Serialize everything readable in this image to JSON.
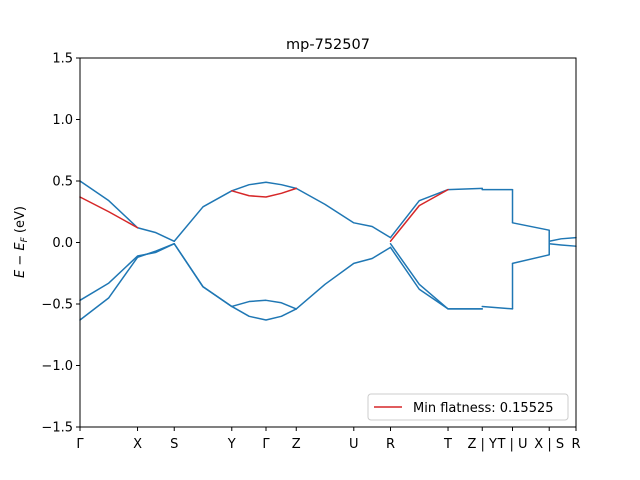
{
  "chart_data": {
    "type": "line",
    "title": "mp-752507",
    "xlabel": "",
    "ylabel": "E − E_F (eV)",
    "ylabel_main": "E − E",
    "ylabel_sub": "F",
    "ylabel_units": " (eV)",
    "ylim": [
      -1.5,
      1.5
    ],
    "yticks": [
      -1.5,
      -1.0,
      -0.5,
      0.0,
      0.5,
      1.0,
      1.5
    ],
    "ytick_labels": [
      "−1.5",
      "−1.0",
      "−0.5",
      "0.0",
      "0.5",
      "1.0",
      "1.5"
    ],
    "xlim": [
      0,
      100
    ],
    "kpoints": [
      {
        "label": "Γ",
        "x": 0
      },
      {
        "label": "X",
        "x": 11.6
      },
      {
        "label": "S",
        "x": 19.0
      },
      {
        "label": "Y",
        "x": 30.6
      },
      {
        "label": "Γ",
        "x": 37.5
      },
      {
        "label": "Z",
        "x": 43.6
      },
      {
        "label": "U",
        "x": 55.2
      },
      {
        "label": "R",
        "x": 62.6
      },
      {
        "label": "T",
        "x": 74.2
      },
      {
        "label": "Z | Y",
        "x": 81.1
      },
      {
        "label": "T | U",
        "x": 87.2
      },
      {
        "label": "X | S",
        "x": 94.6
      },
      {
        "label": "R",
        "x": 100
      }
    ],
    "grid": false,
    "legend": {
      "position": "bottom-right",
      "entries": [
        {
          "label": "Min flatness: 0.15525",
          "color": "#d62728"
        }
      ]
    },
    "colors": {
      "band": "#1f77b4",
      "flat": "#d62728"
    },
    "series": [
      {
        "color": "#1f77b4",
        "points": [
          [
            0,
            0.5
          ],
          [
            5.8,
            0.34
          ],
          [
            11.6,
            0.12
          ],
          [
            15.3,
            0.08
          ],
          [
            19.0,
            0.01
          ]
        ]
      },
      {
        "color": "#1f77b4",
        "points": [
          [
            0,
            -0.47
          ],
          [
            5.8,
            -0.33
          ],
          [
            11.6,
            -0.11
          ],
          [
            15.3,
            -0.08
          ],
          [
            19.0,
            -0.01
          ]
        ]
      },
      {
        "color": "#1f77b4",
        "points": [
          [
            0,
            -0.63
          ],
          [
            5.8,
            -0.45
          ],
          [
            11.6,
            -0.12
          ],
          [
            15.3,
            -0.07
          ],
          [
            19.0,
            -0.01
          ]
        ]
      },
      {
        "color": "#1f77b4",
        "points": [
          [
            19.0,
            0.01
          ],
          [
            24.8,
            0.29
          ],
          [
            30.6,
            0.42
          ],
          [
            34.1,
            0.47
          ],
          [
            37.5,
            0.49
          ],
          [
            40.6,
            0.47
          ],
          [
            43.6,
            0.44
          ]
        ]
      },
      {
        "color": "#1f77b4",
        "points": [
          [
            19.0,
            -0.01
          ],
          [
            24.8,
            -0.36
          ],
          [
            30.6,
            -0.52
          ],
          [
            34.1,
            -0.48
          ],
          [
            37.5,
            -0.47
          ],
          [
            40.6,
            -0.49
          ],
          [
            43.6,
            -0.54
          ]
        ]
      },
      {
        "color": "#1f77b4",
        "points": [
          [
            19.0,
            -0.01
          ],
          [
            24.8,
            -0.36
          ],
          [
            30.6,
            -0.52
          ],
          [
            34.1,
            -0.6
          ],
          [
            37.5,
            -0.63
          ],
          [
            40.6,
            -0.6
          ],
          [
            43.6,
            -0.54
          ]
        ]
      },
      {
        "color": "#1f77b4",
        "points": [
          [
            43.6,
            0.44
          ],
          [
            49.4,
            0.31
          ],
          [
            55.2,
            0.16
          ],
          [
            58.9,
            0.13
          ],
          [
            62.6,
            0.04
          ]
        ]
      },
      {
        "color": "#1f77b4",
        "points": [
          [
            43.6,
            -0.54
          ],
          [
            49.4,
            -0.34
          ],
          [
            55.2,
            -0.17
          ],
          [
            58.9,
            -0.13
          ],
          [
            62.6,
            -0.04
          ]
        ]
      },
      {
        "color": "#1f77b4",
        "points": [
          [
            62.6,
            0.04
          ],
          [
            68.4,
            0.34
          ],
          [
            74.2,
            0.43
          ],
          [
            81.1,
            0.44
          ]
        ]
      },
      {
        "color": "#1f77b4",
        "points": [
          [
            62.6,
            -0.01
          ],
          [
            68.4,
            -0.34
          ],
          [
            74.2,
            -0.54
          ],
          [
            81.1,
            -0.54
          ]
        ]
      },
      {
        "color": "#1f77b4",
        "points": [
          [
            62.6,
            -0.04
          ],
          [
            68.4,
            -0.38
          ],
          [
            74.2,
            -0.54
          ],
          [
            81.1,
            -0.54
          ]
        ]
      },
      {
        "color": "#1f77b4",
        "points": [
          [
            81.1,
            0.43
          ],
          [
            87.2,
            0.43
          ]
        ]
      },
      {
        "color": "#1f77b4",
        "points": [
          [
            81.1,
            -0.52
          ],
          [
            87.2,
            -0.54
          ]
        ]
      },
      {
        "color": "#1f77b4",
        "points": [
          [
            87.2,
            0.16
          ],
          [
            94.6,
            0.1
          ]
        ]
      },
      {
        "color": "#1f77b4",
        "points": [
          [
            87.2,
            -0.17
          ],
          [
            94.6,
            -0.1
          ]
        ]
      },
      {
        "color": "#1f77b4",
        "points": [
          [
            94.6,
            0.01
          ],
          [
            97.0,
            0.03
          ],
          [
            100,
            0.04
          ]
        ]
      },
      {
        "color": "#1f77b4",
        "points": [
          [
            94.6,
            -0.01
          ],
          [
            97.0,
            -0.02
          ],
          [
            100,
            -0.03
          ]
        ]
      },
      {
        "color": "#d62728",
        "points": [
          [
            0,
            0.37
          ],
          [
            5.8,
            0.25
          ],
          [
            11.6,
            0.12
          ]
        ]
      },
      {
        "color": "#d62728",
        "points": [
          [
            30.6,
            0.42
          ],
          [
            34.1,
            0.38
          ],
          [
            37.5,
            0.37
          ],
          [
            40.6,
            0.4
          ],
          [
            43.6,
            0.44
          ]
        ]
      },
      {
        "color": "#d62728",
        "points": [
          [
            62.6,
            0.01
          ],
          [
            68.4,
            0.3
          ],
          [
            74.2,
            0.43
          ]
        ]
      }
    ],
    "jumps": [
      {
        "x": 81.1,
        "y0": 0.44,
        "y1": 0.43
      },
      {
        "x": 87.2,
        "y0": 0.43,
        "y1": 0.16
      },
      {
        "x": 87.2,
        "y0": -0.54,
        "y1": -0.17
      },
      {
        "x": 94.6,
        "y0": 0.1,
        "y1": -0.1
      }
    ]
  }
}
